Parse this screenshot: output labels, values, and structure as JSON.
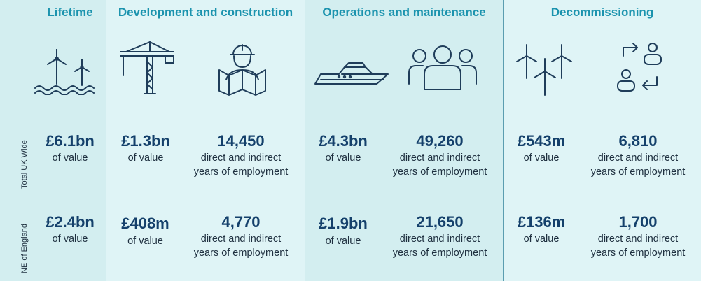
{
  "row_labels": {
    "uk": "Total UK Wide",
    "ne": "NE of England"
  },
  "headers": {
    "lifetime": "Lifetime",
    "development": "Development and construction",
    "operations": "Operations and maintenance",
    "decommissioning": "Decommissioning"
  },
  "icons": {
    "lifetime": "offshore-wind-turbines-icon",
    "dev_a": "construction-crane-icon",
    "dev_b": "engineer-with-plans-icon",
    "ops_a": "vessel-icon",
    "ops_b": "group-of-people-icon",
    "dec_a": "wind-turbines-icon",
    "dec_b": "people-exchange-icon"
  },
  "value_label": "of value",
  "employment_line1": "direct and indirect",
  "employment_line2": "years of employment",
  "uk": {
    "lifetime_value": "£6.1bn",
    "dev_value": "£1.3bn",
    "dev_jobs": "14,450",
    "ops_value": "£4.3bn",
    "ops_jobs": "49,260",
    "dec_value": "£543m",
    "dec_jobs": "6,810"
  },
  "ne": {
    "lifetime_value": "£2.4bn",
    "dev_value": "£408m",
    "dev_jobs": "4,770",
    "ops_value": "£1.9bn",
    "ops_jobs": "21,650",
    "dec_value": "£136m",
    "dec_jobs": "1,700"
  },
  "colors": {
    "heading": "#1b93ae",
    "figure": "#14406b",
    "icon": "#1f3d5a"
  }
}
